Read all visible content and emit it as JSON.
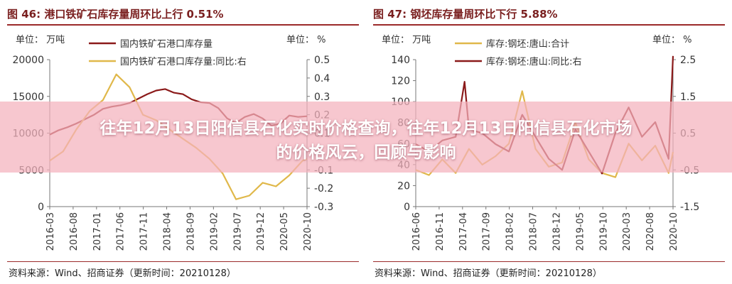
{
  "headline": "往年12月13日阳信县石化实时价格查询，往年12月13日阳信县石化市场的价格风云，回顾与影响",
  "colors": {
    "dark_red": "#8b1a1a",
    "gold": "#e0b84a",
    "title_red": "#7a1f1f"
  },
  "chart_data": [
    {
      "type": "line",
      "title": "图 46:  港口铁矿石库存量周环比上行 0.51%",
      "source": "资料来源：Wind、招商证券（更新时间：20210128）",
      "left_axis": {
        "unit_label": "单位：",
        "unit": "万吨",
        "ticks": [
          "20000",
          "15000",
          "10000",
          "5000",
          "0"
        ],
        "ylim": [
          0,
          20000
        ]
      },
      "right_axis": {
        "unit_label": "单位：",
        "unit": "%",
        "ticks": [
          "0.5",
          "0.4",
          "0.3",
          "0.2",
          "0.1",
          "0",
          "-0.1",
          "-0.2",
          "-0.3"
        ],
        "ylim": [
          -0.3,
          0.5
        ]
      },
      "x_ticks": [
        "2016-03",
        "2016-08",
        "2017-01",
        "2017-06",
        "2017-11",
        "2018-04",
        "2018-09",
        "2019-02",
        "2019-07",
        "2019-12",
        "2020-05",
        "2020-10"
      ],
      "x_range": [
        "2016-03",
        "2021-01"
      ],
      "series": [
        {
          "name": "国内铁矿石港口库存量",
          "axis": "left",
          "color": "#8b1a1a",
          "x": [
            "2016-03",
            "2016-05",
            "2016-07",
            "2016-09",
            "2016-11",
            "2017-01",
            "2017-03",
            "2017-05",
            "2017-07",
            "2017-09",
            "2017-11",
            "2018-01",
            "2018-03",
            "2018-05",
            "2018-07",
            "2018-09",
            "2018-11",
            "2019-01",
            "2019-03",
            "2019-05",
            "2019-07",
            "2019-09",
            "2019-11",
            "2020-01",
            "2020-03",
            "2020-05",
            "2020-07",
            "2020-09",
            "2020-11",
            "2021-01"
          ],
          "values": [
            9800,
            10400,
            10800,
            11300,
            11900,
            12500,
            13300,
            13600,
            13800,
            14100,
            14700,
            15300,
            15800,
            16000,
            15500,
            15300,
            14600,
            14200,
            14100,
            13400,
            12000,
            11400,
            12200,
            12600,
            12000,
            11000,
            11300,
            12400,
            12200,
            12300
          ]
        },
        {
          "name": "国内铁矿石港口库存量:同比:右",
          "axis": "right",
          "color": "#e0b84a",
          "x": [
            "2016-03",
            "2016-06",
            "2016-09",
            "2016-12",
            "2017-03",
            "2017-06",
            "2017-09",
            "2017-12",
            "2018-03",
            "2018-06",
            "2018-09",
            "2018-12",
            "2019-03",
            "2019-06",
            "2019-09",
            "2019-12",
            "2020-03",
            "2020-06",
            "2020-09",
            "2020-12",
            "2021-01"
          ],
          "values": [
            -0.05,
            0.0,
            0.12,
            0.22,
            0.28,
            0.42,
            0.35,
            0.2,
            0.17,
            0.12,
            0.07,
            0.02,
            -0.04,
            -0.12,
            -0.26,
            -0.24,
            -0.17,
            -0.19,
            -0.13,
            -0.05,
            -0.04
          ]
        }
      ]
    },
    {
      "type": "line",
      "title": "图 47:  钢坯库存量周环比下行 5.88%",
      "source": "资料来源：Wind、招商证券（更新时间：20210128）",
      "left_axis": {
        "unit_label": "单位：",
        "unit": "万吨",
        "ticks": [
          "140",
          "120",
          "100",
          "80",
          "60",
          "40",
          "20",
          "0"
        ],
        "ylim": [
          0,
          140
        ]
      },
      "right_axis": {
        "unit_label": "单位：",
        "unit": "%",
        "ticks": [
          "2.5",
          "1.5",
          "0.5",
          "-0.5",
          "-1.5"
        ],
        "ylim": [
          -1.5,
          2.5
        ]
      },
      "x_ticks": [
        "2016-06",
        "2016-11",
        "2017-04",
        "2017-09",
        "2018-02",
        "2018-07",
        "2018-12",
        "2019-05",
        "2019-10",
        "2020-03",
        "2020-08",
        "2020-10"
      ],
      "x_range": [
        "2016-03",
        "2021-01"
      ],
      "series": [
        {
          "name": "库存:钢坯:唐山:合计",
          "axis": "left",
          "color": "#e0b84a",
          "x": [
            "2016-03",
            "2016-06",
            "2016-09",
            "2016-12",
            "2017-03",
            "2017-06",
            "2017-09",
            "2017-12",
            "2018-03",
            "2018-06",
            "2018-09",
            "2018-12",
            "2019-03",
            "2019-06",
            "2019-09",
            "2019-12",
            "2020-03",
            "2020-06",
            "2020-09",
            "2020-12",
            "2021-01"
          ],
          "values": [
            35,
            30,
            45,
            32,
            55,
            40,
            48,
            60,
            110,
            55,
            38,
            42,
            80,
            45,
            32,
            28,
            60,
            44,
            58,
            32,
            52
          ]
        },
        {
          "name": "库存:钢坯:唐山:同比:右",
          "axis": "right",
          "color": "#8b1a1a",
          "x": [
            "2016-03",
            "2016-06",
            "2016-09",
            "2016-12",
            "2017-02",
            "2017-03",
            "2017-06",
            "2017-09",
            "2017-12",
            "2018-03",
            "2018-06",
            "2018-09",
            "2018-12",
            "2019-03",
            "2019-06",
            "2019-09",
            "2019-12",
            "2020-03",
            "2020-06",
            "2020-09",
            "2020-12",
            "2021-01"
          ],
          "values": [
            0.2,
            0.0,
            0.3,
            0.4,
            1.9,
            0.6,
            0.5,
            0.2,
            0.0,
            1.0,
            0.4,
            -0.2,
            -0.5,
            0.6,
            0.0,
            -0.6,
            0.5,
            1.2,
            0.4,
            0.8,
            -0.2,
            2.6
          ]
        }
      ]
    }
  ]
}
